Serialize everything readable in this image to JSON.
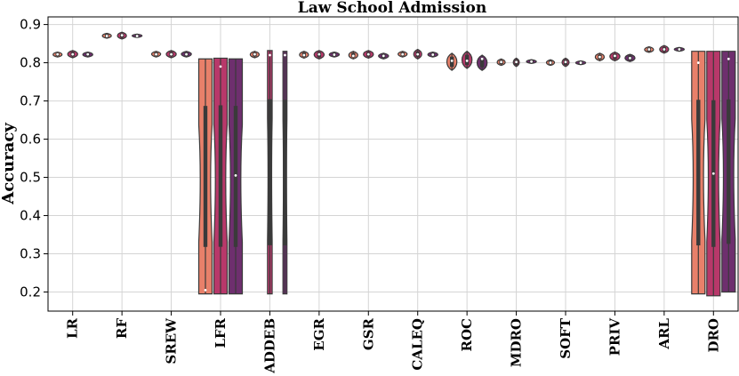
{
  "chart_data": {
    "type": "violin",
    "title": "Law School Admission",
    "xlabel": "",
    "ylabel": "Accuracy",
    "ylim": [
      0.15,
      0.92
    ],
    "yticks": [
      "0.2",
      "0.3",
      "0.4",
      "0.5",
      "0.6",
      "0.7",
      "0.8",
      "0.9"
    ],
    "grid": true,
    "categories": [
      "LR",
      "RF",
      "SREW",
      "LFR",
      "ADDEB",
      "EGR",
      "GSR",
      "CALEQ",
      "ROC",
      "MDRO",
      "SOFT",
      "PRIV",
      "ARL",
      "DRO"
    ],
    "series": [
      {
        "color": "#e8806a",
        "values": [
          {
            "min": 0.815,
            "max": 0.828,
            "median": 0.822,
            "width": 0.9
          },
          {
            "min": 0.864,
            "max": 0.877,
            "median": 0.87,
            "width": 0.9
          },
          {
            "min": 0.815,
            "max": 0.83,
            "median": 0.822,
            "width": 0.9
          },
          {
            "min": 0.195,
            "max": 0.81,
            "median": 0.205,
            "width": 1.0
          },
          {
            "min": 0.813,
            "max": 0.83,
            "median": 0.822,
            "width": 0.9
          },
          {
            "min": 0.812,
            "max": 0.83,
            "median": 0.82,
            "width": 0.9
          },
          {
            "min": 0.81,
            "max": 0.83,
            "median": 0.818,
            "width": 0.9
          },
          {
            "min": 0.815,
            "max": 0.83,
            "median": 0.822,
            "width": 0.9
          },
          {
            "min": 0.78,
            "max": 0.825,
            "median": 0.805,
            "width": 1.0
          },
          {
            "min": 0.793,
            "max": 0.81,
            "median": 0.802,
            "width": 0.8
          },
          {
            "min": 0.793,
            "max": 0.808,
            "median": 0.8,
            "width": 0.8
          },
          {
            "min": 0.805,
            "max": 0.825,
            "median": 0.815,
            "width": 0.9
          },
          {
            "min": 0.827,
            "max": 0.842,
            "median": 0.835,
            "width": 0.9
          },
          {
            "min": 0.195,
            "max": 0.83,
            "median": 0.8,
            "width": 1.0
          }
        ]
      },
      {
        "color": "#b8386a",
        "values": [
          {
            "min": 0.813,
            "max": 0.832,
            "median": 0.822,
            "width": 1.0
          },
          {
            "min": 0.862,
            "max": 0.88,
            "median": 0.872,
            "width": 0.9
          },
          {
            "min": 0.813,
            "max": 0.832,
            "median": 0.822,
            "width": 1.0
          },
          {
            "min": 0.195,
            "max": 0.812,
            "median": 0.79,
            "width": 1.0
          },
          {
            "min": 0.195,
            "max": 0.832,
            "median": 0.82,
            "width": 0.35
          },
          {
            "min": 0.81,
            "max": 0.832,
            "median": 0.822,
            "width": 1.0
          },
          {
            "min": 0.812,
            "max": 0.832,
            "median": 0.822,
            "width": 1.0
          },
          {
            "min": 0.81,
            "max": 0.835,
            "median": 0.822,
            "width": 0.8
          },
          {
            "min": 0.785,
            "max": 0.83,
            "median": 0.805,
            "width": 1.0
          },
          {
            "min": 0.79,
            "max": 0.812,
            "median": 0.802,
            "width": 0.6
          },
          {
            "min": 0.79,
            "max": 0.812,
            "median": 0.802,
            "width": 0.7
          },
          {
            "min": 0.805,
            "max": 0.828,
            "median": 0.818,
            "width": 1.0
          },
          {
            "min": 0.825,
            "max": 0.845,
            "median": 0.835,
            "width": 0.9
          },
          {
            "min": 0.19,
            "max": 0.83,
            "median": 0.51,
            "width": 1.0
          }
        ]
      },
      {
        "color": "#6e2f6e",
        "values": [
          {
            "min": 0.815,
            "max": 0.828,
            "median": 0.822,
            "width": 1.0
          },
          {
            "min": 0.866,
            "max": 0.875,
            "median": 0.87,
            "width": 1.0
          },
          {
            "min": 0.815,
            "max": 0.83,
            "median": 0.822,
            "width": 1.0
          },
          {
            "min": 0.195,
            "max": 0.81,
            "median": 0.505,
            "width": 1.0
          },
          {
            "min": 0.195,
            "max": 0.83,
            "median": 0.82,
            "width": 0.3
          },
          {
            "min": 0.815,
            "max": 0.828,
            "median": 0.821,
            "width": 1.0
          },
          {
            "min": 0.81,
            "max": 0.825,
            "median": 0.818,
            "width": 1.0
          },
          {
            "min": 0.815,
            "max": 0.828,
            "median": 0.821,
            "width": 1.0
          },
          {
            "min": 0.78,
            "max": 0.82,
            "median": 0.81,
            "width": 1.0
          },
          {
            "min": 0.798,
            "max": 0.808,
            "median": 0.803,
            "width": 1.0
          },
          {
            "min": 0.795,
            "max": 0.805,
            "median": 0.8,
            "width": 1.0
          },
          {
            "min": 0.803,
            "max": 0.822,
            "median": 0.812,
            "width": 1.0
          },
          {
            "min": 0.83,
            "max": 0.84,
            "median": 0.835,
            "width": 1.0
          },
          {
            "min": 0.2,
            "max": 0.83,
            "median": 0.81,
            "width": 1.0
          }
        ]
      }
    ]
  }
}
